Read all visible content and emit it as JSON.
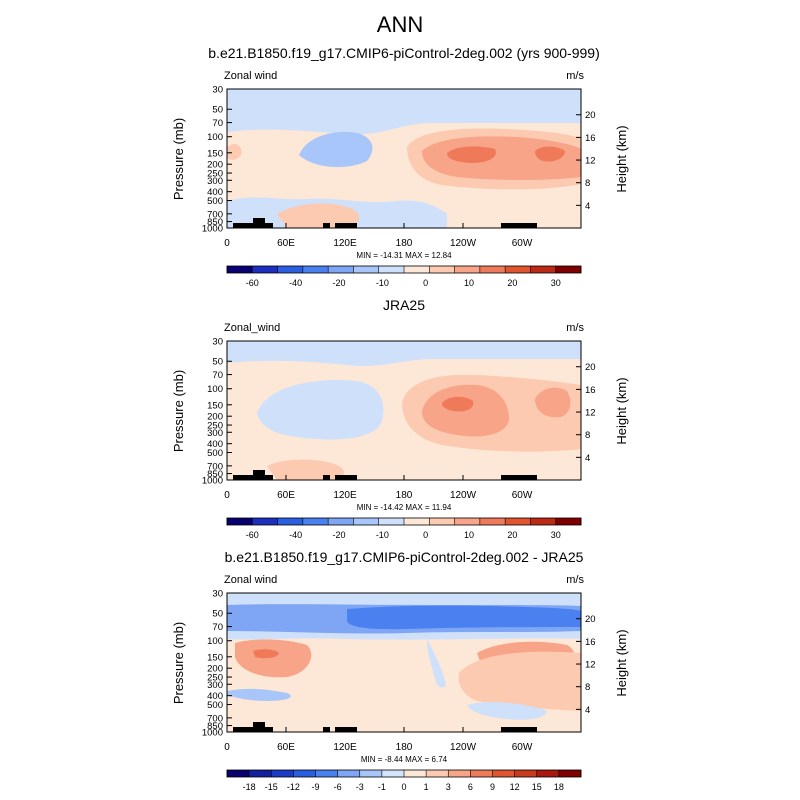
{
  "page_title": "ANN",
  "chart_data": [
    {
      "type": "heatmap",
      "title": "b.e21.B1850.f19_g17.CMIP6-piControl-2deg.002 (yrs 900-999)",
      "left_label": "Zonal wind",
      "right_label": "m/s",
      "ylabel": "Pressure (mb)",
      "ylabel_right": "Height (km)",
      "pressure_ticks": [
        "30",
        "50",
        "70",
        "100",
        "150",
        "200",
        "250",
        "300",
        "400",
        "500",
        "700",
        "850",
        "1000"
      ],
      "height_ticks": [
        "20",
        "16",
        "12",
        "8",
        "4"
      ],
      "lon_ticks": [
        "0",
        "60E",
        "120E",
        "180",
        "120W",
        "60W"
      ],
      "stats_text": "MIN = -14.31   MAX =  12.84",
      "colorbar_ticks": [
        "-60",
        "-40",
        "-20",
        "-10",
        "0",
        "10",
        "20",
        "30"
      ],
      "colorbar_levels": 14,
      "colorbar_colors": [
        "#08006e",
        "#1c2fbe",
        "#2a5fe0",
        "#4a80ef",
        "#7ea6f5",
        "#a8c6fa",
        "#cfe0fb",
        "#fde8d8",
        "#fccab0",
        "#f8a488",
        "#ef7a5a",
        "#e0552f",
        "#bb2a15",
        "#7f0000"
      ]
    },
    {
      "type": "heatmap",
      "title": "JRA25",
      "left_label": "Zonal_wind",
      "right_label": "m/s",
      "ylabel": "Pressure (mb)",
      "ylabel_right": "Height (km)",
      "pressure_ticks": [
        "30",
        "50",
        "70",
        "100",
        "150",
        "200",
        "250",
        "300",
        "400",
        "500",
        "700",
        "850",
        "1000"
      ],
      "height_ticks": [
        "20",
        "16",
        "12",
        "8",
        "4"
      ],
      "lon_ticks": [
        "0",
        "60E",
        "120E",
        "180",
        "120W",
        "60W"
      ],
      "stats_text": "MIN = -14.42   MAX =  11.94",
      "colorbar_ticks": [
        "-60",
        "-40",
        "-20",
        "-10",
        "0",
        "10",
        "20",
        "30"
      ],
      "colorbar_levels": 14,
      "colorbar_colors": [
        "#08006e",
        "#1c2fbe",
        "#2a5fe0",
        "#4a80ef",
        "#7ea6f5",
        "#a8c6fa",
        "#cfe0fb",
        "#fde8d8",
        "#fccab0",
        "#f8a488",
        "#ef7a5a",
        "#e0552f",
        "#bb2a15",
        "#7f0000"
      ]
    },
    {
      "type": "heatmap",
      "title": "b.e21.B1850.f19_g17.CMIP6-piControl-2deg.002 - JRA25",
      "left_label": "Zonal wind",
      "right_label": "m/s",
      "ylabel": "Pressure (mb)",
      "ylabel_right": "Height (km)",
      "pressure_ticks": [
        "30",
        "50",
        "70",
        "100",
        "150",
        "200",
        "250",
        "300",
        "400",
        "500",
        "700",
        "850",
        "1000"
      ],
      "height_ticks": [
        "20",
        "16",
        "12",
        "8",
        "4"
      ],
      "lon_ticks": [
        "0",
        "60E",
        "120E",
        "180",
        "120W",
        "60W"
      ],
      "stats_text": "MIN = -8.44   MAX =  6.74",
      "colorbar_ticks": [
        "-18",
        "-15",
        "-12",
        "-9",
        "-6",
        "-3",
        "-1",
        "0",
        "1",
        "3",
        "6",
        "9",
        "12",
        "15",
        "18"
      ],
      "colorbar_levels": 16,
      "colorbar_colors": [
        "#08006e",
        "#14219f",
        "#1c3cc8",
        "#2a5fe0",
        "#4a80ef",
        "#7ea6f5",
        "#a8c6fa",
        "#d4e4fb",
        "#fde8d8",
        "#fccab0",
        "#f8a488",
        "#ef7a5a",
        "#e0552f",
        "#c93a1f",
        "#a81810",
        "#7f0000"
      ]
    }
  ]
}
